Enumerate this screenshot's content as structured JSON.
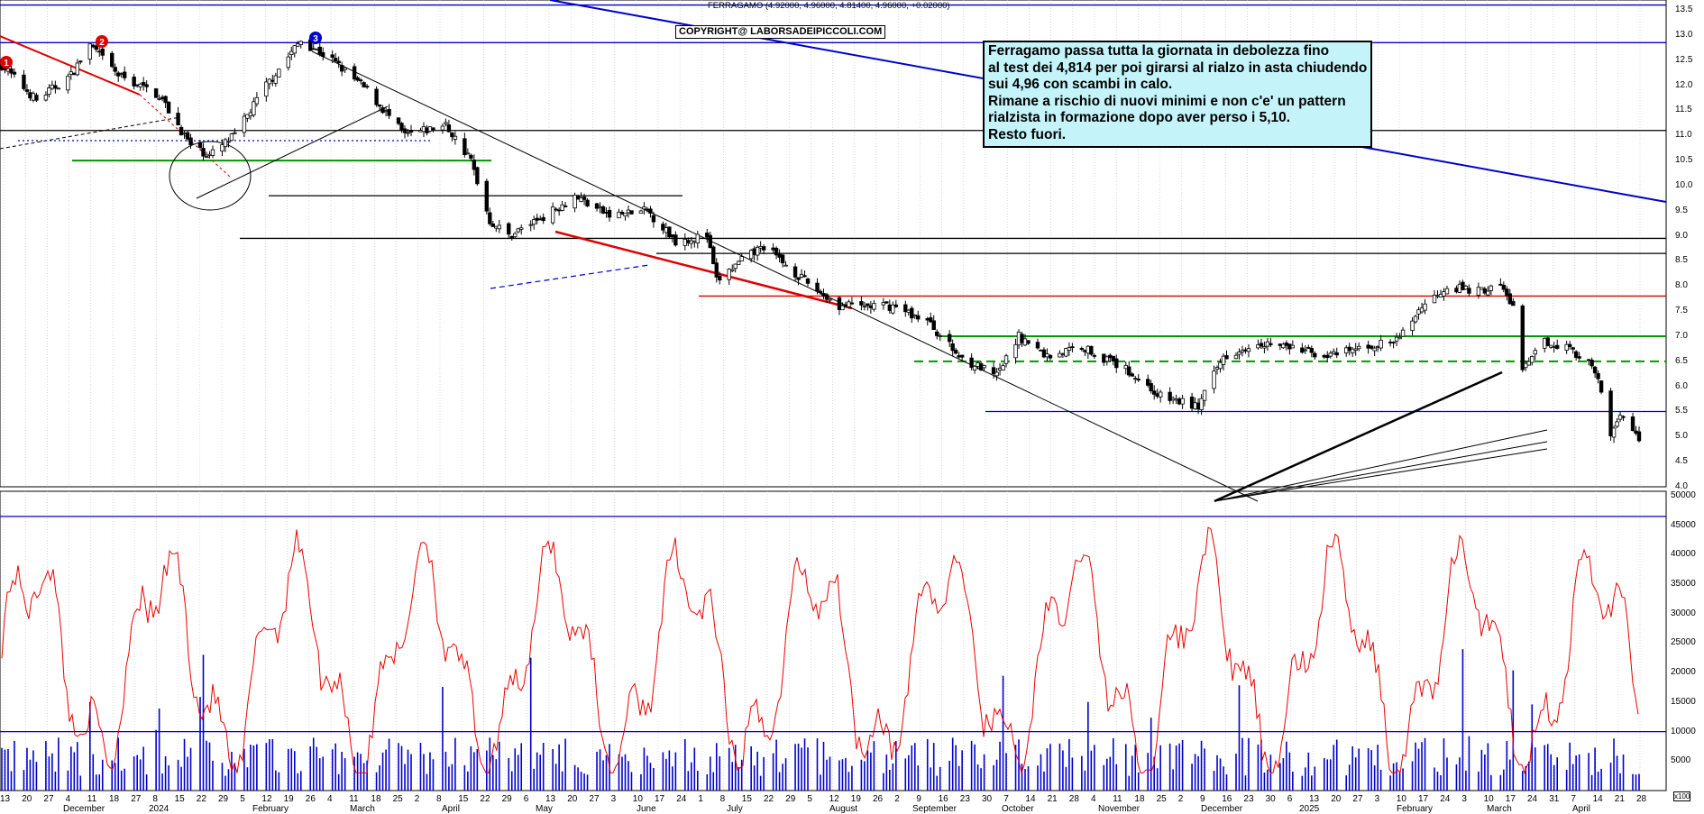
{
  "header": "FERRAGAMO (4.92000, 4.96000, 4.81400, 4.96000, +0.02000)",
  "copyright": "COPYRIGHT@ LABORSADEIPICCOLI.COM",
  "note_lines": [
    "Ferragamo passa tutta la giornata in debolezza fino",
    "al test dei 4,814 per poi girarsi al rialzo in asta chiudendo",
    "sui 4,96 con scambi in calo.",
    "Rimane a rischio di nuovi minimi e non c'e' un pattern",
    "rialzista in formazione dopo aver perso i 5,10.",
    "Resto fuori."
  ],
  "volume_scale_label": "x100",
  "markers": [
    "1",
    "2",
    "3"
  ],
  "colors": {
    "background": "#ffffff",
    "grid": "#c0c0c0",
    "candle": "#000000",
    "trendline_blue": "#0000cc",
    "trendline_red": "#dd0000",
    "support_green": "#009900",
    "oscillator": "#ee0000",
    "volume_bars": "#0000cc",
    "note_bg": "#c4f3f9",
    "marker_red": "#dd0000",
    "marker_blue": "#0000cc"
  },
  "chart_data": [
    {
      "type": "candlestick",
      "title": "FERRAGAMO (4.92000, 4.96000, 4.81400, 4.96000, +0.02000)",
      "ylim": [
        4.0,
        13.7
      ],
      "yticks": [
        "13.5",
        "13.0",
        "12.5",
        "12.0",
        "11.5",
        "11.0",
        "10.5",
        "10.0",
        "9.5",
        "9.0",
        "8.5",
        "8.0",
        "7.5",
        "7.0",
        "6.5",
        "6.0",
        "5.5",
        "5.0",
        "4.5",
        "4.0"
      ],
      "last": {
        "open": 4.92,
        "high": 4.96,
        "low": 4.814,
        "close": 4.96,
        "change": 0.02
      },
      "price_path": [
        [
          "2023-11-13",
          12.4
        ],
        [
          "2023-11-24",
          11.7
        ],
        [
          "2023-12-05",
          12.2
        ],
        [
          "2023-12-11",
          12.8
        ],
        [
          "2023-12-20",
          12.2
        ],
        [
          "2024-01-02",
          11.8
        ],
        [
          "2024-01-12",
          10.8
        ],
        [
          "2024-01-18",
          10.6
        ],
        [
          "2024-01-26",
          11.0
        ],
        [
          "2024-02-05",
          12.0
        ],
        [
          "2024-02-16",
          12.9
        ],
        [
          "2024-02-26",
          12.5
        ],
        [
          "2024-03-08",
          11.9
        ],
        [
          "2024-03-20",
          11.0
        ],
        [
          "2024-04-02",
          11.2
        ],
        [
          "2024-04-10",
          10.5
        ],
        [
          "2024-04-16",
          9.3
        ],
        [
          "2024-04-22",
          9.0
        ],
        [
          "2024-05-06",
          9.5
        ],
        [
          "2024-05-13",
          9.8
        ],
        [
          "2024-05-24",
          9.4
        ],
        [
          "2024-06-05",
          9.5
        ],
        [
          "2024-06-14",
          8.9
        ],
        [
          "2024-06-24",
          9.0
        ],
        [
          "2024-06-27",
          8.1
        ],
        [
          "2024-07-05",
          8.5
        ],
        [
          "2024-07-12",
          8.8
        ],
        [
          "2024-07-25",
          8.1
        ],
        [
          "2024-08-05",
          7.6
        ],
        [
          "2024-08-22",
          7.6
        ],
        [
          "2024-09-02",
          7.3
        ],
        [
          "2024-09-12",
          6.6
        ],
        [
          "2024-09-24",
          6.2
        ],
        [
          "2024-10-01",
          7.0
        ],
        [
          "2024-10-10",
          6.6
        ],
        [
          "2024-10-21",
          6.8
        ],
        [
          "2024-11-05",
          6.3
        ],
        [
          "2024-11-15",
          5.8
        ],
        [
          "2024-11-27",
          5.6
        ],
        [
          "2024-12-05",
          6.6
        ],
        [
          "2024-12-16",
          6.9
        ],
        [
          "2025-01-08",
          6.6
        ],
        [
          "2025-01-20",
          6.8
        ],
        [
          "2025-01-29",
          6.9
        ],
        [
          "2025-02-06",
          7.6
        ],
        [
          "2025-02-14",
          8.0
        ],
        [
          "2025-02-24",
          7.9
        ],
        [
          "2025-03-03",
          8.0
        ],
        [
          "2025-03-07",
          7.6
        ],
        [
          "2025-03-10",
          6.3
        ],
        [
          "2025-03-17",
          6.9
        ],
        [
          "2025-03-24",
          6.8
        ],
        [
          "2025-04-01",
          6.4
        ],
        [
          "2025-04-04",
          5.9
        ],
        [
          "2025-04-07",
          5.0
        ],
        [
          "2025-04-10",
          5.5
        ],
        [
          "2025-04-14",
          5.1
        ],
        [
          "2025-04-16",
          4.96
        ]
      ],
      "horizontal_levels": [
        {
          "value": 13.6,
          "color": "blue"
        },
        {
          "value": 12.85,
          "color": "blue"
        },
        {
          "value": 11.1,
          "color": "black"
        },
        {
          "value": 10.5,
          "color": "green"
        },
        {
          "value": 9.8,
          "color": "black"
        },
        {
          "value": 8.95,
          "color": "black"
        },
        {
          "value": 8.65,
          "color": "black"
        },
        {
          "value": 7.8,
          "color": "red"
        },
        {
          "value": 7.0,
          "color": "green"
        },
        {
          "value": 6.5,
          "color": "green",
          "style": "dashed"
        },
        {
          "value": 5.5,
          "color": "blue"
        }
      ]
    },
    {
      "type": "bar+line",
      "ylim": [
        0,
        50000
      ],
      "yticks": [
        "50000",
        "45000",
        "40000",
        "35000",
        "30000",
        "25000",
        "20000",
        "15000",
        "10000",
        "5000"
      ],
      "series": [
        {
          "values": "volume",
          "color": "blue"
        },
        {
          "values": "oscillator",
          "color": "red"
        }
      ],
      "horizontal_levels": [
        10000,
        46500
      ]
    }
  ],
  "x_axis": {
    "day_labels": [
      "13",
      "20",
      "27",
      "4",
      "11",
      "18",
      "27",
      "8",
      "15",
      "22",
      "29",
      "5",
      "12",
      "19",
      "26",
      "4",
      "11",
      "18",
      "25",
      "2",
      "8",
      "15",
      "22",
      "29",
      "6",
      "13",
      "20",
      "27",
      "3",
      "10",
      "17",
      "24",
      "1",
      "8",
      "15",
      "22",
      "29",
      "5",
      "12",
      "19",
      "26",
      "2",
      "9",
      "16",
      "23",
      "30",
      "7",
      "14",
      "21",
      "28",
      "4",
      "11",
      "18",
      "25",
      "2",
      "9",
      "16",
      "23",
      "30",
      "6",
      "13",
      "20",
      "27",
      "3",
      "10",
      "17",
      "24",
      "3",
      "10",
      "17",
      "24",
      "31",
      "7",
      "14",
      "21",
      "28"
    ],
    "month_labels": [
      "December",
      "2024",
      "February",
      "March",
      "April",
      "May",
      "June",
      "July",
      "August",
      "September",
      "October",
      "November",
      "December",
      "2025",
      "February",
      "March",
      "April"
    ]
  }
}
